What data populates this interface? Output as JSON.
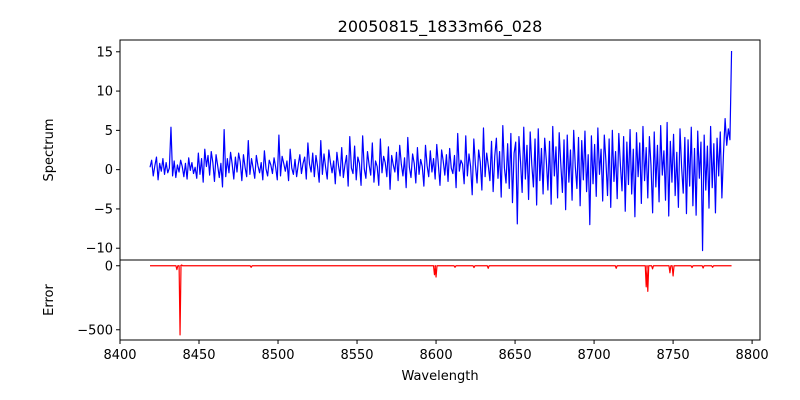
{
  "chart_data": {
    "title": "20050815_1833m66_028",
    "xlabel": "Wavelength",
    "xlim": [
      8400,
      8805
    ],
    "x_ticks": [
      8400,
      8450,
      8500,
      8550,
      8600,
      8650,
      8700,
      8750,
      8800
    ],
    "x_tick_labels": [
      "8400",
      "8450",
      "8500",
      "8550",
      "8600",
      "8650",
      "8700",
      "8750",
      "8800"
    ],
    "panels": [
      {
        "id": "spectrum",
        "type": "line",
        "ylabel": "Spectrum",
        "ylim": [
          -11.5,
          16.5
        ],
        "y_ticks": [
          -10,
          -5,
          0,
          5,
          10,
          15
        ],
        "y_tick_labels": [
          "−10",
          "−5",
          "0",
          "5",
          "10",
          "15"
        ],
        "color": "#0000ff",
        "x_start": 8419,
        "x_end": 8787,
        "values": [
          0.3,
          1.2,
          -0.8,
          0.5,
          1.6,
          -1.3,
          0.8,
          -0.2,
          1.4,
          -0.6,
          0.9,
          -0.4,
          0.2,
          5.4,
          -0.8,
          1.1,
          -1.0,
          0.6,
          -0.3,
          1.2,
          0.4,
          -0.9,
          0.8,
          -1.2,
          1.5,
          -0.1,
          0.9,
          -0.5,
          0.3,
          -1.1,
          2.1,
          -0.6,
          1.4,
          -1.6,
          2.6,
          0.4,
          1.8,
          -0.7,
          2.3,
          0.9,
          -1.5,
          1.9,
          0.5,
          -1.0,
          0.8,
          -2.2,
          5.1,
          -0.9,
          1.4,
          -0.4,
          2.2,
          0.7,
          -1.2,
          1.6,
          -0.3,
          2.1,
          1.0,
          -1.4,
          1.9,
          0.3,
          -0.9,
          3.7,
          -0.6,
          1.4,
          0.2,
          -1.1,
          1.8,
          0.5,
          -0.4,
          0.9,
          -1.3,
          2.4,
          0.1,
          -0.8,
          1.2,
          0.6,
          -0.5,
          1.5,
          0.3,
          -1.3,
          4.4,
          -0.8,
          1.7,
          0.8,
          -0.2,
          1.1,
          -1.4,
          2.6,
          0.2,
          -0.6,
          1.3,
          -0.9,
          0.6,
          1.9,
          -0.5,
          0.8,
          1.6,
          -1.2,
          3.4,
          0.7,
          -0.3,
          2.1,
          -0.9,
          1.8,
          0.4,
          -1.6,
          3.7,
          -0.6,
          2.0,
          0.3,
          -1.2,
          2.5,
          0.9,
          -0.4,
          1.1,
          -1.8,
          2.2,
          0.5,
          -0.8,
          2.8,
          -1.0,
          0.6,
          1.8,
          -2.1,
          4.2,
          0.2,
          -0.5,
          3.0,
          -1.3,
          1.6,
          0.8,
          -2.0,
          4.3,
          0.1,
          -1.1,
          2.3,
          0.6,
          -0.7,
          3.4,
          -1.6,
          1.1,
          0.4,
          -2.0,
          3.9,
          -0.4,
          1.7,
          0.9,
          -0.9,
          2.9,
          -2.5,
          1.8,
          0.6,
          -0.3,
          2.2,
          -1.4,
          3.1,
          0.7,
          -0.8,
          1.5,
          -2.3,
          4.1,
          0.3,
          -1.0,
          2.0,
          0.8,
          -1.7,
          2.8,
          -0.6,
          1.3,
          0.4,
          -2.1,
          3.1,
          0.5,
          -0.9,
          2.4,
          -0.3,
          1.4,
          -1.2,
          3.2,
          0.6,
          -2.0,
          2.5,
          1.1,
          -0.7,
          1.9,
          -1.5,
          2.7,
          0.2,
          -0.5,
          1.8,
          -2.3,
          4.6,
          -0.2,
          1.2,
          0.7,
          -1.8,
          4.3,
          -0.8,
          2.0,
          0.4,
          -3.2,
          3.9,
          0.6,
          -1.7,
          2.5,
          1.0,
          -2.6,
          5.3,
          -0.9,
          2.1,
          0.5,
          -1.4,
          3.6,
          -2.8,
          1.7,
          4.0,
          -1.1,
          2.3,
          -3.5,
          5.6,
          0.2,
          -1.7,
          3.3,
          -2.4,
          4.6,
          -4.2,
          2.1,
          3.5,
          -6.9,
          4.2,
          1.0,
          -2.9,
          5.4,
          -1.2,
          3.1,
          -3.8,
          4.8,
          0.6,
          -2.2,
          3.9,
          -4.5,
          5.2,
          -1.4,
          2.7,
          -3.1,
          4.0,
          1.2,
          -2.6,
          3.6,
          -4.4,
          5.5,
          -0.8,
          2.9,
          -3.6,
          4.7,
          0.7,
          -2.9,
          3.8,
          -5.1,
          4.4,
          -1.6,
          2.5,
          -3.9,
          5.0,
          0.4,
          -2.4,
          4.1,
          -4.6,
          3.7,
          -1.3,
          4.9,
          -2.8,
          1.9,
          -7.0,
          4.3,
          -1.8,
          3.2,
          -3.4,
          5.3,
          -0.6,
          2.6,
          -4.0,
          4.4,
          1.1,
          -3.3,
          3.9,
          -4.8,
          5.0,
          -1.5,
          2.3,
          -3.7,
          4.6,
          0.6,
          -2.7,
          4.2,
          -5.3,
          3.5,
          -1.9,
          5.1,
          -3.1,
          2.6,
          -6.0,
          4.7,
          -0.9,
          3.4,
          -4.3,
          5.5,
          -1.4,
          2.8,
          -3.6,
          4.2,
          0.5,
          -5.5,
          4.8,
          -2.2,
          3.1,
          -4.1,
          5.6,
          -0.7,
          2.4,
          -3.9,
          6.0,
          -5.9,
          3.6,
          -1.6,
          4.5,
          -3.3,
          2.2,
          -4.8,
          5.2,
          0.3,
          -3.0,
          4.1,
          -5.6,
          3.8,
          -2.1,
          5.4,
          -4.6,
          2.7,
          -5.8,
          4.9,
          -1.1,
          3.5,
          -10.3,
          4.4,
          -2.6,
          3.0,
          -4.9,
          5.5,
          -2.3,
          3.3,
          -5.5,
          4.0,
          -0.8,
          4.8,
          -3.6,
          2.1,
          6.5,
          3.1,
          5.2,
          3.8,
          15.1
        ]
      },
      {
        "id": "error",
        "type": "line",
        "ylabel": "Error",
        "ylim": [
          -580,
          45
        ],
        "y_ticks": [
          0,
          -500
        ],
        "y_tick_labels": [
          "0",
          "−500"
        ],
        "color": "#ff0000",
        "x_start": 8419,
        "x_end": 8787,
        "baseline": 0,
        "spikes": [
          {
            "x": 8436,
            "y": -30
          },
          {
            "x": 8438,
            "y": -540
          },
          {
            "x": 8439,
            "y": 6
          },
          {
            "x": 8483,
            "y": -12
          },
          {
            "x": 8599,
            "y": -70
          },
          {
            "x": 8600,
            "y": -88
          },
          {
            "x": 8612,
            "y": -12
          },
          {
            "x": 8624,
            "y": -14
          },
          {
            "x": 8633,
            "y": -20
          },
          {
            "x": 8714,
            "y": -20
          },
          {
            "x": 8733,
            "y": -165
          },
          {
            "x": 8734,
            "y": -200
          },
          {
            "x": 8737,
            "y": -24
          },
          {
            "x": 8748,
            "y": -55
          },
          {
            "x": 8750,
            "y": -80
          },
          {
            "x": 8762,
            "y": -14
          },
          {
            "x": 8769,
            "y": -18
          },
          {
            "x": 8775,
            "y": -12
          }
        ]
      }
    ]
  }
}
